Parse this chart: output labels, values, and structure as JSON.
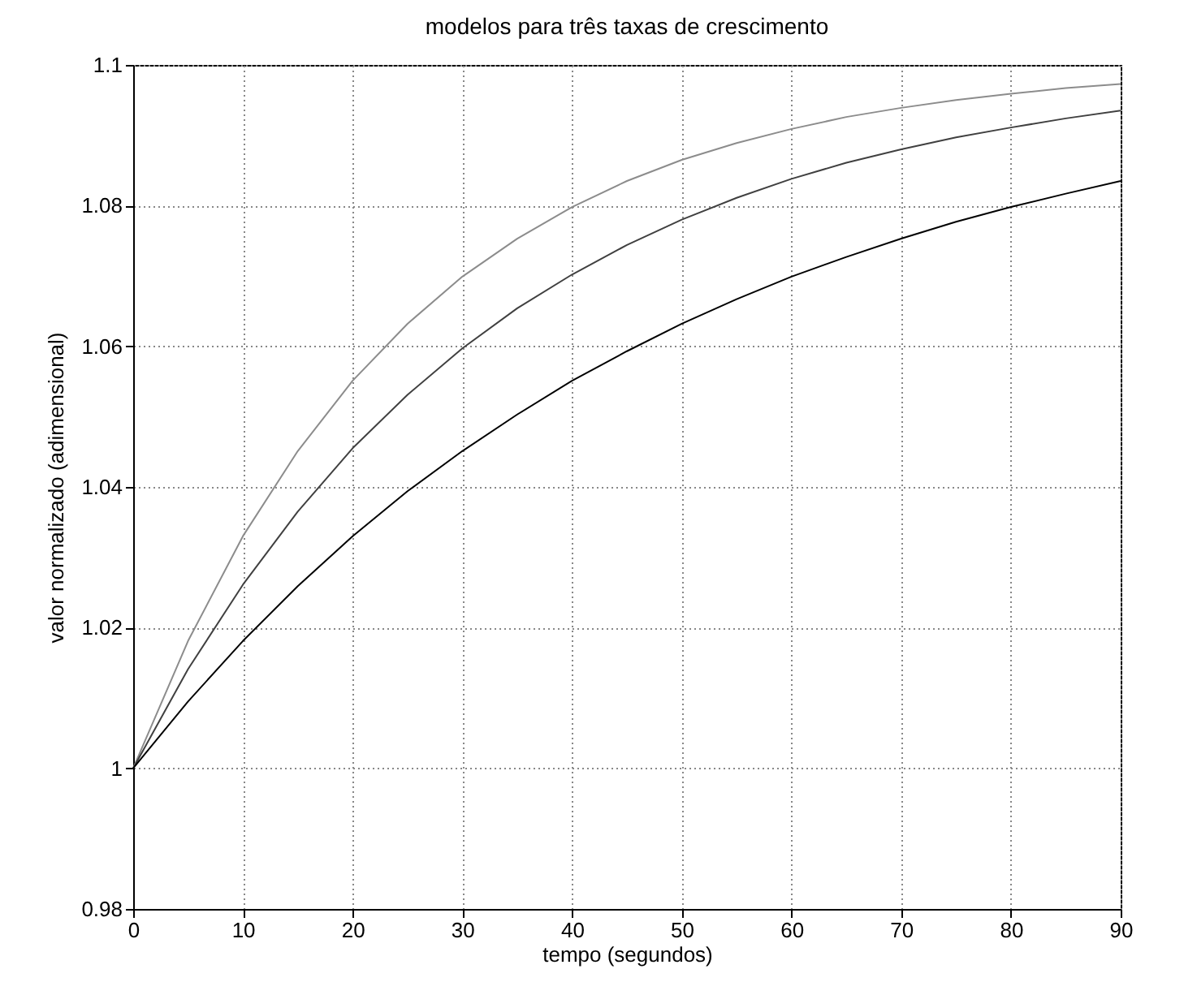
{
  "chart_data": {
    "type": "line",
    "title": "modelos para três taxas de crescimento",
    "xlabel": "tempo (segundos)",
    "ylabel": "valor normalizado (adimensional)",
    "x": [
      0,
      5,
      10,
      15,
      20,
      25,
      30,
      35,
      40,
      45,
      50,
      55,
      60,
      65,
      70,
      75,
      80,
      85,
      90
    ],
    "series": [
      {
        "color": "#8c8c8c",
        "values": [
          1,
          1.0181,
          1.033,
          1.0451,
          1.0551,
          1.0632,
          1.0699,
          1.0753,
          1.0798,
          1.0835,
          1.0865,
          1.0889,
          1.0909,
          1.0926,
          1.0939,
          1.095,
          1.0959,
          1.0967,
          1.0973
        ]
      },
      {
        "color": "#404040",
        "values": [
          1,
          1.0141,
          1.0261,
          1.0365,
          1.0455,
          1.0531,
          1.0597,
          1.0654,
          1.0702,
          1.0744,
          1.078,
          1.0811,
          1.0838,
          1.0861,
          1.088,
          1.0897,
          1.0911,
          1.0924,
          1.0935
        ]
      },
      {
        "color": "#000000",
        "values": [
          1,
          1.0095,
          1.0181,
          1.0259,
          1.033,
          1.0394,
          1.0451,
          1.0503,
          1.0551,
          1.0593,
          1.0632,
          1.0667,
          1.0699,
          1.0727,
          1.0753,
          1.0777,
          1.0798,
          1.0817,
          1.0835
        ]
      }
    ],
    "xlim": [
      0,
      90
    ],
    "xticks": [
      0,
      10,
      20,
      30,
      40,
      50,
      60,
      70,
      80,
      90
    ],
    "ylim": [
      0.98,
      1.1
    ],
    "yticks": [
      0.98,
      1,
      1.02,
      1.04,
      1.06,
      1.08,
      1.1
    ],
    "grid": true,
    "legend": false,
    "line_style": "solid",
    "marker": "none"
  }
}
